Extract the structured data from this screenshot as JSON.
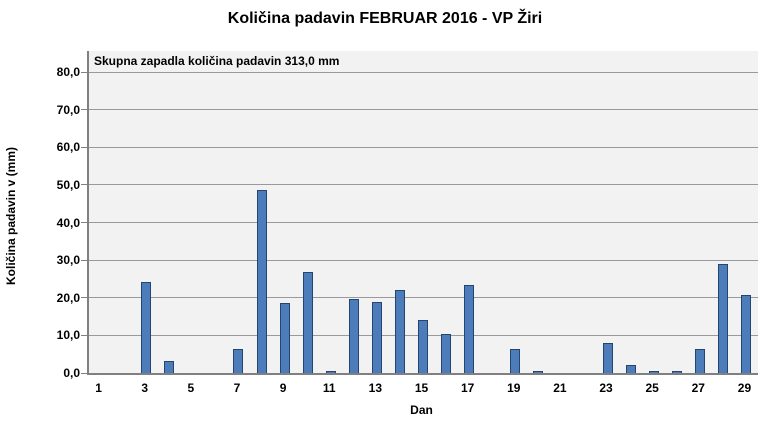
{
  "chart_data": {
    "type": "bar",
    "title": "Količina padavin FEBRUAR 2016 - VP Žiri",
    "annotation": "Skupna zapadla količina padavin 313,0 mm",
    "xlabel": "Dan",
    "ylabel": "Količina padavin v  (mm)",
    "categories": [
      1,
      2,
      3,
      4,
      5,
      6,
      7,
      8,
      9,
      10,
      11,
      12,
      13,
      14,
      15,
      16,
      17,
      18,
      19,
      20,
      21,
      22,
      23,
      24,
      25,
      26,
      27,
      28,
      29
    ],
    "values": [
      0,
      0,
      24.3,
      3.4,
      0,
      0,
      6.4,
      48.7,
      18.8,
      27.0,
      0.4,
      19.8,
      18.9,
      22.1,
      14.1,
      10.6,
      23.4,
      0,
      6.4,
      0.8,
      0,
      0,
      8.2,
      2.2,
      0.5,
      0.5,
      6.4,
      29.2,
      20.9
    ],
    "total_mm": "313,0",
    "ylim": [
      0,
      80
    ],
    "ytick_step": 10,
    "ytick_labels": [
      "0,0",
      "10,0",
      "20,0",
      "30,0",
      "40,0",
      "50,0",
      "60,0",
      "70,0",
      "80,0"
    ],
    "xtick_labels": [
      "1",
      "3",
      "5",
      "7",
      "9",
      "11",
      "13",
      "15",
      "17",
      "19",
      "21",
      "23",
      "25",
      "27",
      "29"
    ],
    "grid": true,
    "legend": "none",
    "colors": {
      "bar_fill": "#4C7DBA",
      "bar_border": "#23456F",
      "plot_bg": "#F2F2F2",
      "gridline": "#999999",
      "axis": "#808080",
      "text": "#000000",
      "chart_bg": "#FFFFFF"
    }
  }
}
